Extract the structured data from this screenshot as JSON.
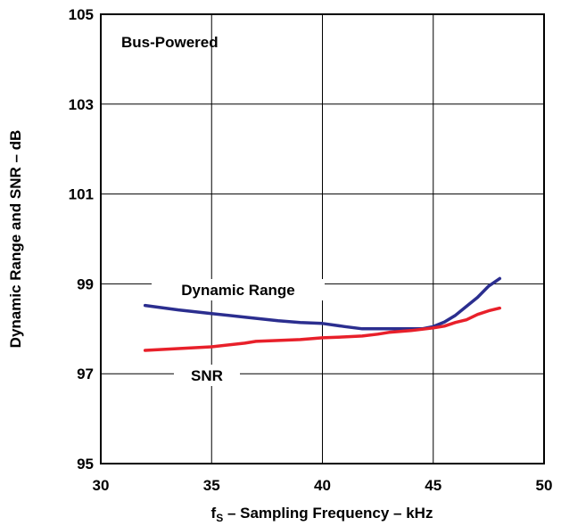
{
  "chart_data": {
    "type": "line",
    "xlabel_main": "f",
    "xlabel_sub": "S",
    "xlabel_rest": " – Sampling Frequency – kHz",
    "ylabel": "Dynamic Range and SNR – dB",
    "xlim": [
      30,
      50
    ],
    "ylim": [
      95,
      105
    ],
    "xticks": [
      "30",
      "35",
      "40",
      "45",
      "50"
    ],
    "yticks": [
      "95",
      "97",
      "99",
      "101",
      "103",
      "105"
    ],
    "grid": true,
    "annotation": "Bus-Powered",
    "colors": {
      "dynamic_range": "#2b2e8f",
      "snr": "#e8202a"
    },
    "series": [
      {
        "name": "Dynamic Range",
        "x": [
          32,
          33.5,
          35,
          36.5,
          38,
          39,
          40,
          41,
          41.8,
          43,
          44,
          44.5,
          45,
          45.5,
          46,
          46.5,
          47,
          47.5,
          48
        ],
        "values": [
          98.52,
          98.42,
          98.34,
          98.26,
          98.18,
          98.14,
          98.12,
          98.05,
          98.0,
          98.0,
          98.0,
          98.0,
          98.05,
          98.15,
          98.3,
          98.5,
          98.7,
          98.95,
          99.12
        ]
      },
      {
        "name": "SNR",
        "x": [
          32,
          33.5,
          35,
          36.5,
          37,
          38,
          39,
          40,
          41,
          41.8,
          42.5,
          43,
          44,
          45,
          45.5,
          46,
          46.5,
          47,
          47.5,
          48
        ],
        "values": [
          97.52,
          97.56,
          97.6,
          97.68,
          97.72,
          97.74,
          97.76,
          97.8,
          97.82,
          97.84,
          97.88,
          97.92,
          97.96,
          98.02,
          98.06,
          98.14,
          98.2,
          98.32,
          98.4,
          98.46
        ]
      }
    ]
  }
}
